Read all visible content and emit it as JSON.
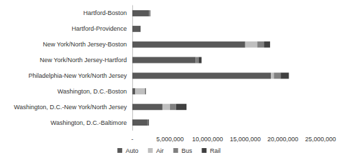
{
  "chart_data": {
    "type": "bar",
    "orientation": "horizontal",
    "stacked": true,
    "grid": false,
    "legend": "bottom",
    "categories": [
      "Hartford-Boston",
      "Hartford-Providence",
      "New York/North Jersey-Boston",
      "New York/North Jersey-Hartford",
      "Philadelphia-New York/North Jersey",
      "Washington, D.C.-Boston",
      "Washington, D.C.-New York/North Jersey",
      "Washington, D.C.-Baltimore"
    ],
    "series": [
      {
        "name": "Auto",
        "color": "#595959",
        "values": [
          2250000,
          1100000,
          15000000,
          8400000,
          18400000,
          400000,
          4000000,
          2000000
        ]
      },
      {
        "name": "Air",
        "color": "#bfbfbf",
        "values": [
          0,
          0,
          1600000,
          0,
          400000,
          1300000,
          1000000,
          0
        ]
      },
      {
        "name": "Bus",
        "color": "#808080",
        "values": [
          100000,
          0,
          900000,
          400000,
          900000,
          0,
          800000,
          100000
        ]
      },
      {
        "name": "Rail",
        "color": "#404040",
        "values": [
          50000,
          0,
          800000,
          400000,
          1100000,
          100000,
          1400000,
          100000
        ]
      }
    ],
    "xlim": [
      0,
      25000000
    ],
    "xticks": [
      {
        "value": 0,
        "label": "-"
      },
      {
        "value": 5000000,
        "label": "5,000,000"
      },
      {
        "value": 10000000,
        "label": "10,000,000"
      },
      {
        "value": 15000000,
        "label": "15,000,000"
      },
      {
        "value": 20000000,
        "label": "20,000,000"
      },
      {
        "value": 25000000,
        "label": "25,000,000"
      }
    ]
  }
}
